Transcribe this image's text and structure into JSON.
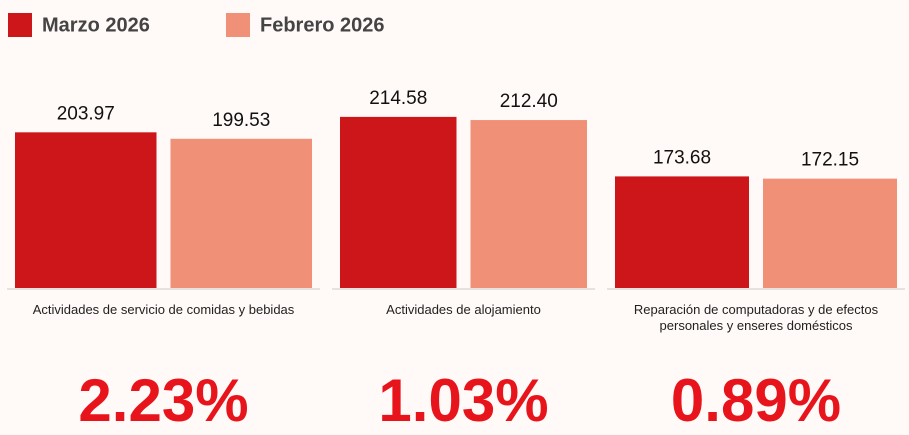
{
  "chart_data": {
    "type": "bar",
    "categories": [
      "Actividades de servicio de comidas y bebidas",
      "Actividades de alojamiento",
      "Reparación de computadoras y de efectos personales y enseres domésticos"
    ],
    "series": [
      {
        "name": "Marzo 2026",
        "color": "#cc1619",
        "values": [
          203.97,
          214.58,
          173.68
        ],
        "value_labels": [
          "203.97",
          "214.58",
          "173.68"
        ]
      },
      {
        "name": "Febrero 2026",
        "color": "#f09077",
        "values": [
          199.53,
          212.4,
          172.15
        ],
        "value_labels": [
          "199.53",
          "212.40",
          "172.15"
        ]
      }
    ],
    "ylim": [
      97,
      220
    ],
    "changes": {
      "values": [
        2.23,
        1.03,
        0.89
      ],
      "value_labels": [
        "2.23%",
        "1.03%",
        "0.89%"
      ],
      "color": "#e8141c"
    }
  }
}
